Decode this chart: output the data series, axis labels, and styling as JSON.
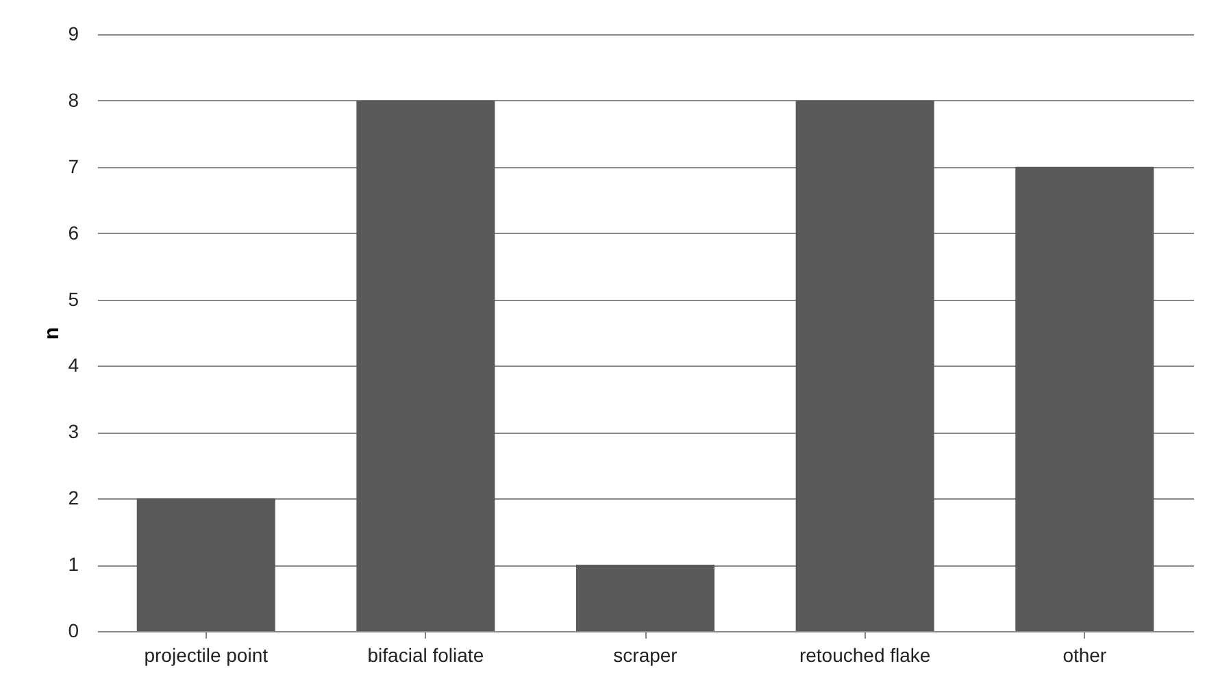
{
  "chart_data": {
    "type": "bar",
    "ylabel": "n",
    "categories": [
      "projectile point",
      "bifacial foliate",
      "scraper",
      "retouched flake",
      "other"
    ],
    "values": [
      2,
      8,
      1,
      8,
      7
    ],
    "color": "#595959",
    "ylim": [
      0,
      9
    ],
    "yticks": [
      0,
      1,
      2,
      3,
      4,
      5,
      6,
      7,
      8,
      9
    ],
    "grid": "y"
  }
}
